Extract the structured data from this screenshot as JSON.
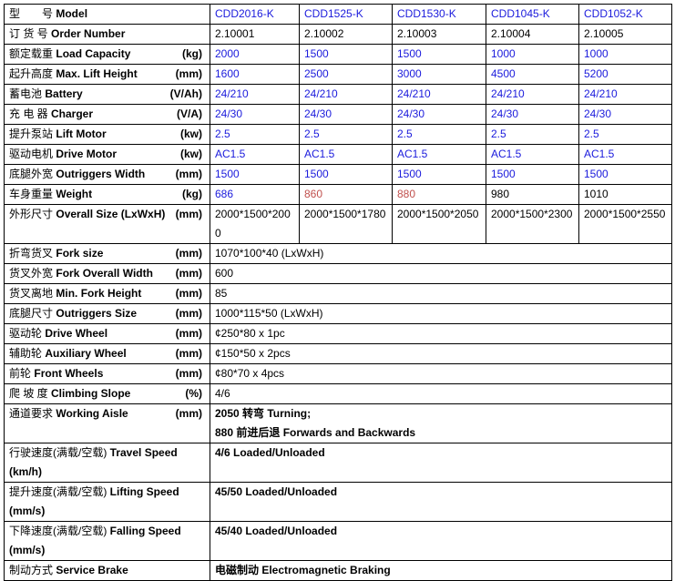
{
  "colors": {
    "blue": "#1a1adc",
    "red": "#c0504d",
    "black": "#000000"
  },
  "rows": [
    {
      "zh": "型　　号",
      "en": "Model",
      "unit": "",
      "values": [
        "CDD2016-K",
        "CDD1525-K",
        "CDD1530-K",
        "CDD1045-K",
        "CDD1052-K"
      ],
      "colors": [
        "blue",
        "blue",
        "blue",
        "blue",
        "blue"
      ]
    },
    {
      "zh": "订 货 号",
      "en": "Order Number",
      "unit": "",
      "values": [
        "2.10001",
        "2.10002",
        "2.10003",
        "2.10004",
        "2.10005"
      ],
      "colors": [
        "blk",
        "blk",
        "blk",
        "blk",
        "blk"
      ]
    },
    {
      "zh": "额定载重",
      "en": "Load Capacity",
      "unit": "(kg)",
      "values": [
        "2000",
        "1500",
        "1500",
        "1000",
        "1000"
      ],
      "colors": [
        "blue",
        "blue",
        "blue",
        "blue",
        "blue"
      ]
    },
    {
      "zh": "起升高度",
      "en": "Max. Lift Height",
      "unit": "(mm)",
      "values": [
        "1600",
        "2500",
        "3000",
        "4500",
        "5200"
      ],
      "colors": [
        "blue",
        "blue",
        "blue",
        "blue",
        "blue"
      ]
    },
    {
      "zh": "蓄电池",
      "en": "Battery",
      "unit": "(V/Ah)",
      "values": [
        "24/210",
        "24/210",
        "24/210",
        "24/210",
        "24/210"
      ],
      "colors": [
        "blue",
        "blue",
        "blue",
        "blue",
        "blue"
      ]
    },
    {
      "zh": "充 电 器",
      "en": "Charger",
      "unit": "(V/A)",
      "values": [
        "24/30",
        "24/30",
        "24/30",
        "24/30",
        "24/30"
      ],
      "colors": [
        "blue",
        "blue",
        "blue",
        "blue",
        "blue"
      ]
    },
    {
      "zh": "提升泵站",
      "en": "Lift Motor",
      "unit": "(kw)",
      "values": [
        "2.5",
        "2.5",
        "2.5",
        "2.5",
        "2.5"
      ],
      "colors": [
        "blue",
        "blue",
        "blue",
        "blue",
        "blue"
      ]
    },
    {
      "zh": "驱动电机",
      "en": "Drive Motor",
      "unit": "(kw)",
      "values": [
        "AC1.5",
        "AC1.5",
        "AC1.5",
        "AC1.5",
        "AC1.5"
      ],
      "colors": [
        "blue",
        "blue",
        "blue",
        "blue",
        "blue"
      ]
    },
    {
      "zh": "底腿外宽",
      "en": "Outriggers Width",
      "unit": "(mm)",
      "values": [
        "1500",
        "1500",
        "1500",
        "1500",
        "1500"
      ],
      "colors": [
        "blue",
        "blue",
        "blue",
        "blue",
        "blue"
      ]
    },
    {
      "zh": "车身重量",
      "en": "Weight",
      "unit": "(kg)",
      "values": [
        "686",
        "860",
        "880",
        "980",
        "1010"
      ],
      "colors": [
        "blue",
        "red",
        "red",
        "blk",
        "blk"
      ]
    },
    {
      "zh": "外形尺寸",
      "en": "Overall Size (LxWxH)",
      "unit": "(mm)",
      "values": [
        "2000*1500*2000",
        "2000*1500*1780",
        "2000*1500*2050",
        "2000*1500*2300",
        "2000*1500*2550"
      ],
      "colors": [
        "blk",
        "blk",
        "blk",
        "blk",
        "blk"
      ]
    }
  ],
  "common_rows": [
    {
      "zh": "折弯货叉",
      "en": "Fork size",
      "unit": "(mm)",
      "value": "1070*100*40 (LxWxH)"
    },
    {
      "zh": "货叉外宽",
      "en": "Fork Overall Width",
      "unit": "(mm)",
      "value": "600"
    },
    {
      "zh": "货叉离地",
      "en": "Min. Fork Height",
      "unit": "(mm)",
      "value": "85"
    },
    {
      "zh": "底腿尺寸",
      "en": "Outriggers Size",
      "unit": "(mm)",
      "value": "1000*115*50 (LxWxH)"
    },
    {
      "zh": "驱动轮",
      "en": "Drive Wheel",
      "unit": "(mm)",
      "value": "¢250*80 x 1pc"
    },
    {
      "zh": "辅助轮",
      "en": "Auxiliary Wheel",
      "unit": "(mm)",
      "value": "¢150*50 x 2pcs"
    },
    {
      "zh": "前轮",
      "en": "Front Wheels",
      "unit": "(mm)",
      "value": "¢80*70 x 4pcs"
    },
    {
      "zh": "爬 坡 度",
      "en": "Climbing Slope",
      "unit": "(%)",
      "value": "4/6"
    },
    {
      "zh": "通道要求",
      "en": "Working Aisle",
      "unit": "(mm)",
      "value": "2050 转弯 Turning;",
      "value2": "880 前进后退 Forwards and Backwards"
    },
    {
      "zh": "行驶速度(满载/空载)",
      "en": "Travel Speed",
      "unit2": "(km/h)",
      "value": "4/6 Loaded/Unloaded"
    },
    {
      "zh": "提升速度(满载/空载)",
      "en": "Lifting Speed",
      "unit2": "(mm/s)",
      "value": "45/50 Loaded/Unloaded"
    },
    {
      "zh": "下降速度(满载/空载)",
      "en": "Falling Speed",
      "unit2": "(mm/s)",
      "value": "45/40 Loaded/Unloaded"
    },
    {
      "zh": "制动方式",
      "en": "Service Brake",
      "unit": "",
      "value": "电磁制动 Electromagnetic Braking"
    }
  ]
}
